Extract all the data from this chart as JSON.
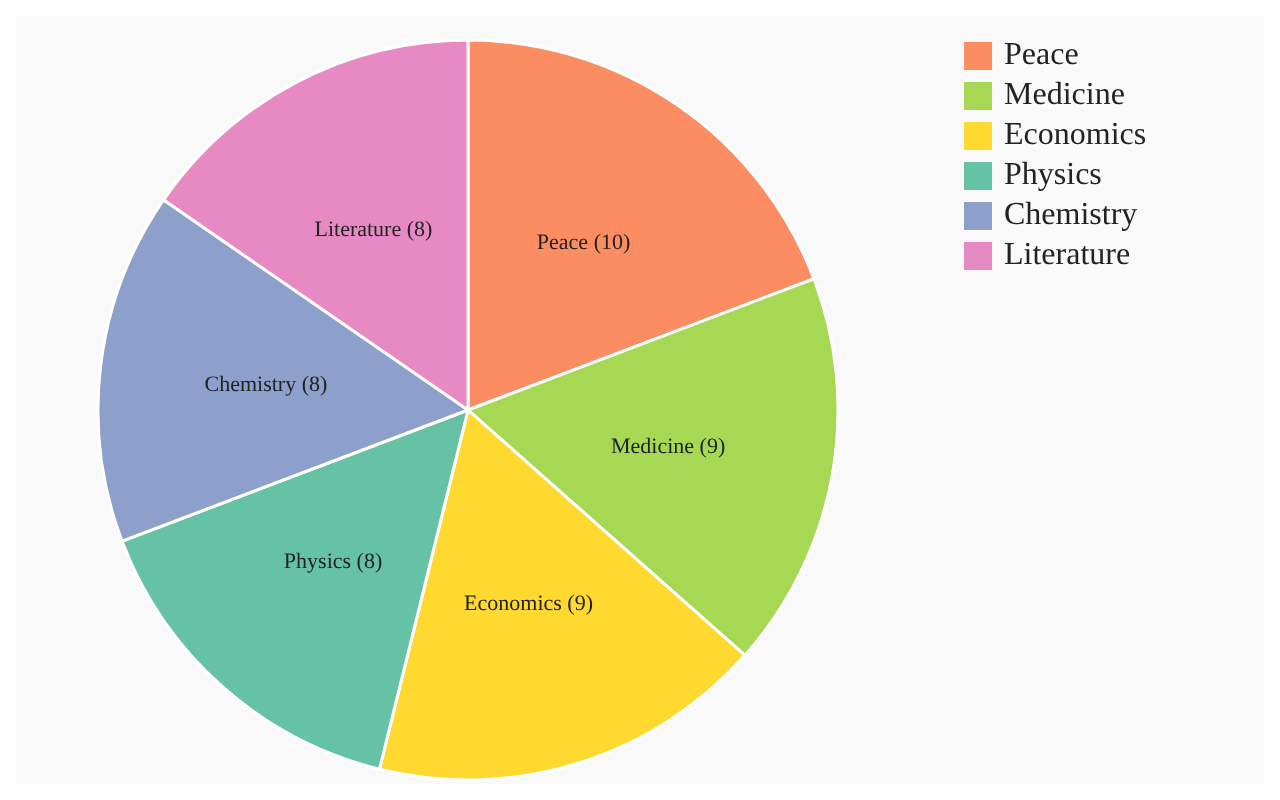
{
  "chart_data": {
    "type": "pie",
    "categories": [
      "Peace",
      "Medicine",
      "Economics",
      "Physics",
      "Chemistry",
      "Literature"
    ],
    "values": [
      10,
      9,
      9,
      8,
      8,
      8
    ],
    "value_labels": [
      "Peace (10)",
      "Medicine (9)",
      "Economics (9)",
      "Physics (8)",
      "Chemistry (8)",
      "Literature (8)"
    ],
    "colors": [
      "#fc8d62",
      "#a6d854",
      "#ffd92f",
      "#66c2a5",
      "#8da0cb",
      "#e78ac3"
    ],
    "legend": "top right"
  }
}
